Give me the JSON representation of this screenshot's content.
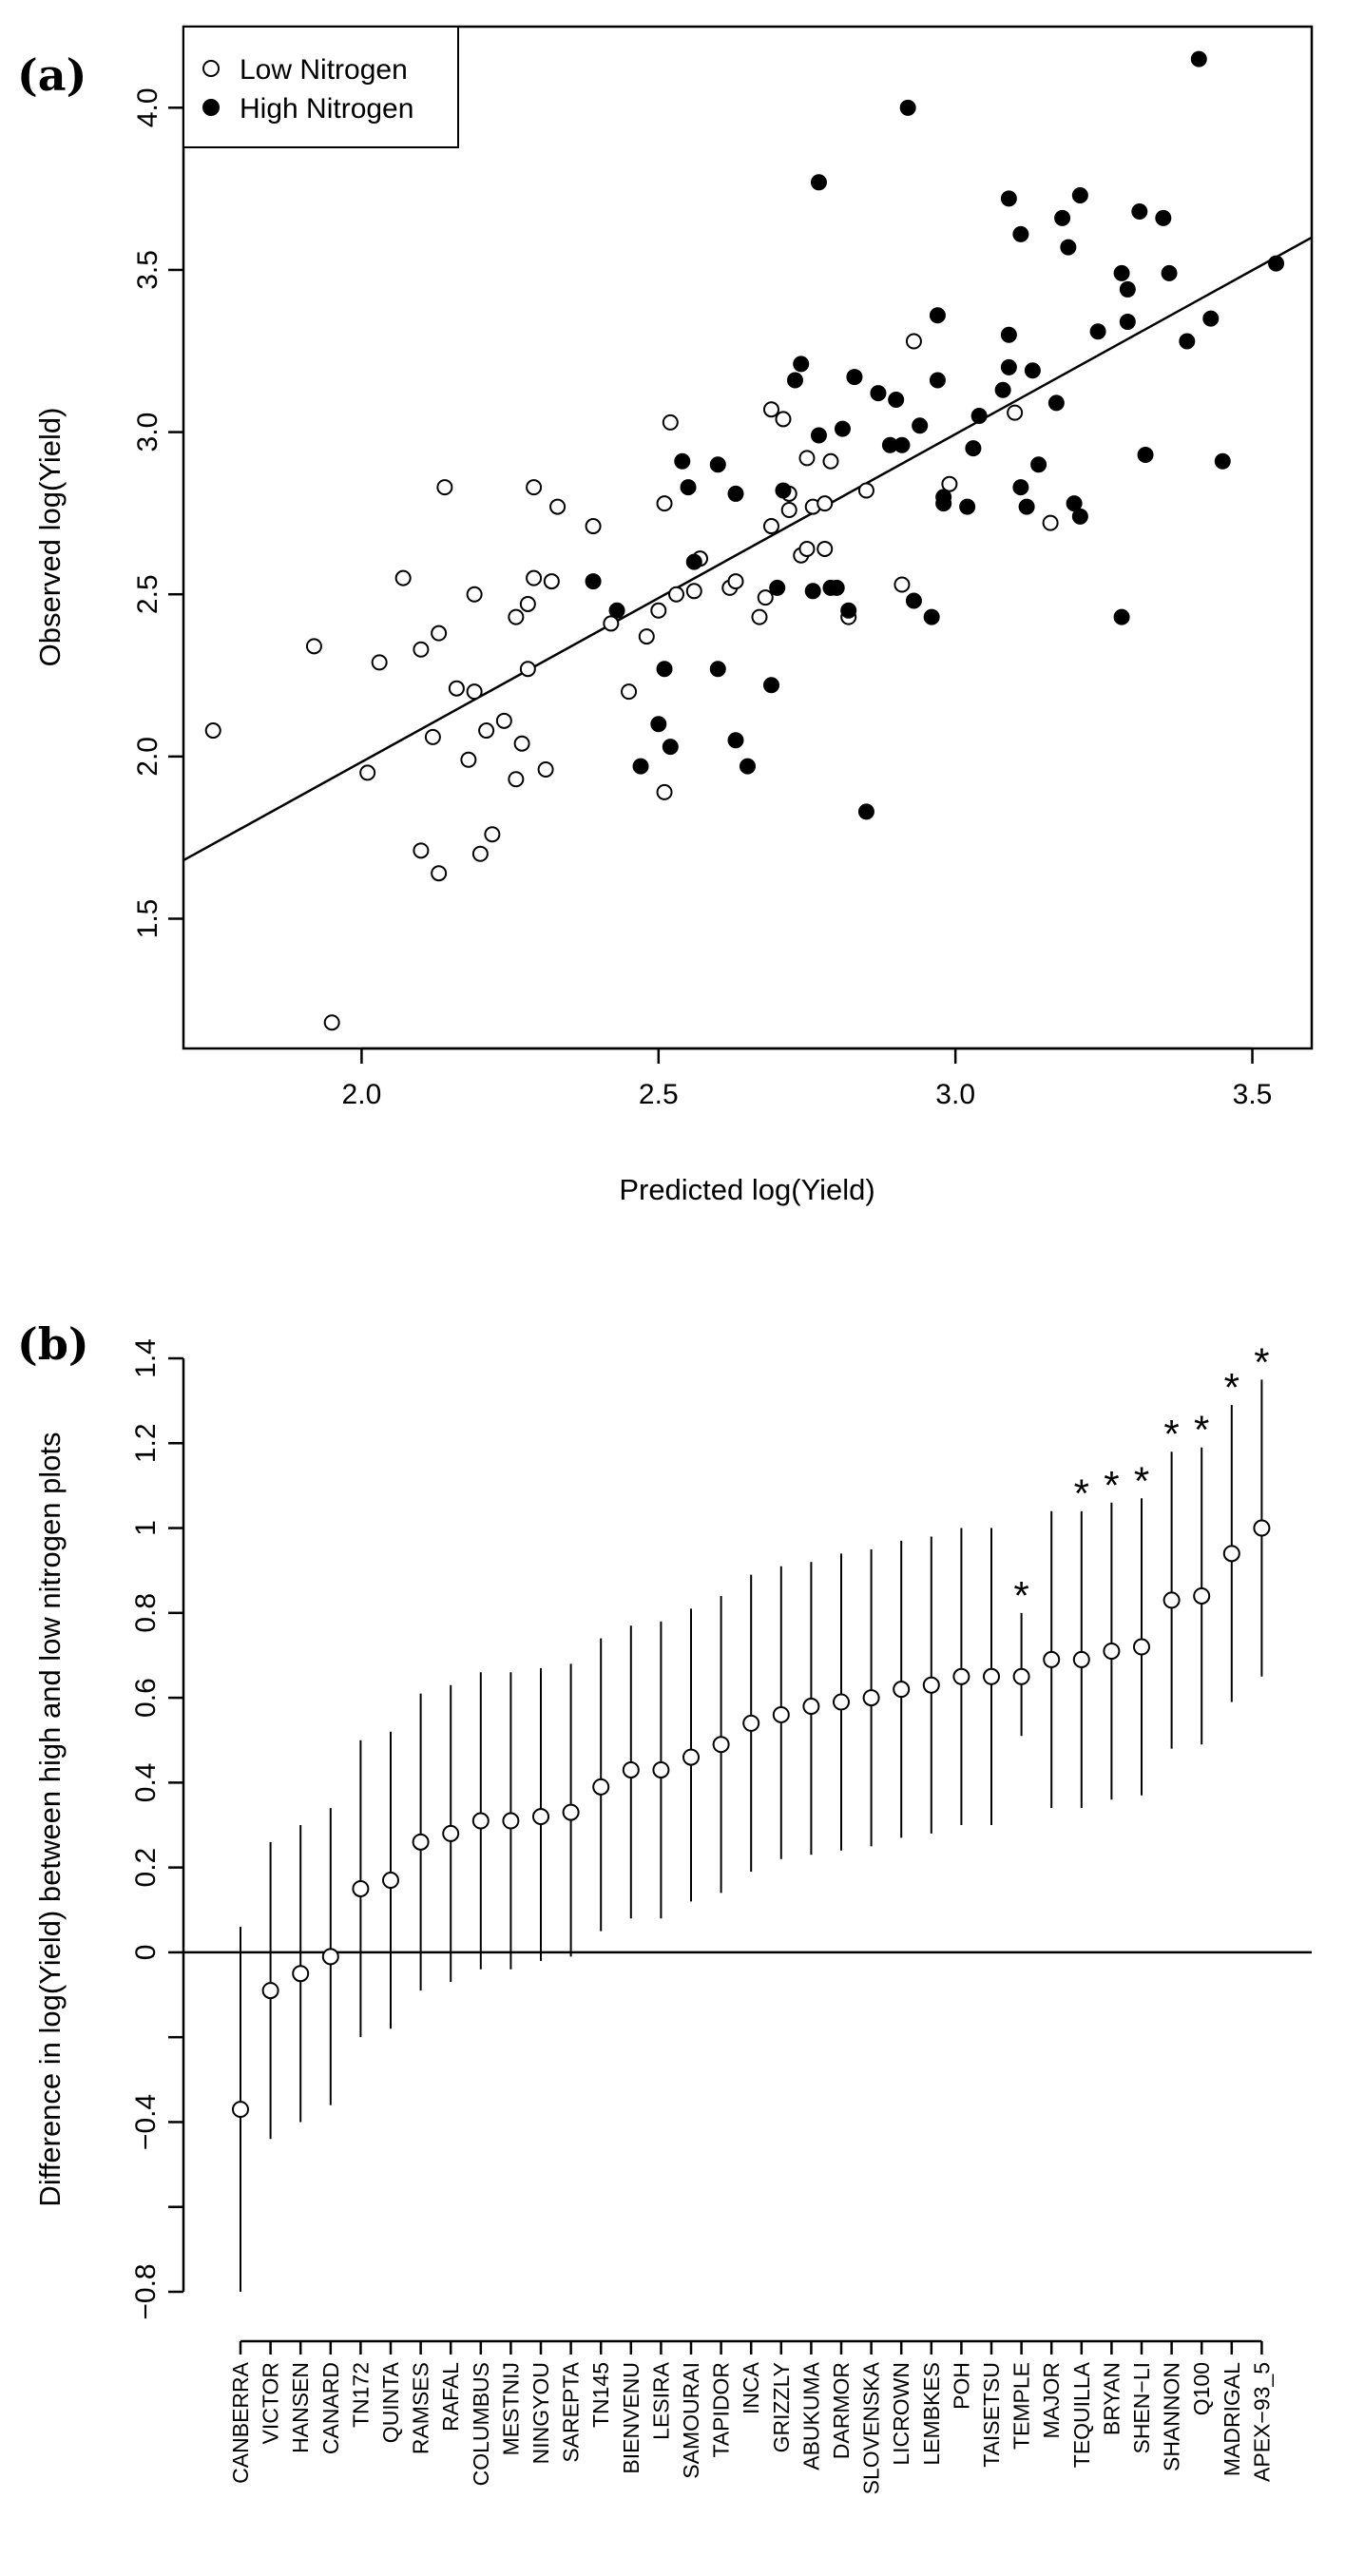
{
  "colors": {
    "ink": "#000000",
    "background": "#ffffff"
  },
  "panel_labels": {
    "a": "(a)",
    "b": "(b)"
  },
  "chart_data": [
    {
      "type": "scatter",
      "title": "",
      "xlabel": "Predicted log(Yield)",
      "ylabel": "Observed log(Yield)",
      "xlim": [
        1.7,
        3.6
      ],
      "ylim": [
        1.1,
        4.25
      ],
      "xticks": [
        2.0,
        2.5,
        3.0,
        3.5
      ],
      "xtick_labels": [
        "2.0",
        "2.5",
        "3.0",
        "3.5"
      ],
      "yticks": [
        1.5,
        2.0,
        2.5,
        3.0,
        3.5,
        4.0
      ],
      "ytick_labels": [
        "1.5",
        "2.0",
        "2.5",
        "3.0",
        "3.5",
        "4.0"
      ],
      "legend": {
        "position": "top-left",
        "entries": [
          {
            "label": "Low Nitrogen",
            "marker": "open-circle"
          },
          {
            "label": "High Nitrogen",
            "marker": "filled-circle"
          }
        ]
      },
      "fit_line": {
        "x": [
          1.7,
          3.6
        ],
        "y": [
          1.68,
          3.6
        ]
      },
      "series": [
        {
          "name": "Low Nitrogen",
          "marker": "open-circle",
          "points": [
            [
              1.75,
              2.08
            ],
            [
              1.92,
              2.34
            ],
            [
              1.95,
              1.18
            ],
            [
              2.01,
              1.95
            ],
            [
              2.03,
              2.29
            ],
            [
              2.07,
              2.55
            ],
            [
              2.1,
              2.33
            ],
            [
              2.1,
              1.71
            ],
            [
              2.12,
              2.06
            ],
            [
              2.13,
              2.38
            ],
            [
              2.13,
              1.64
            ],
            [
              2.14,
              2.83
            ],
            [
              2.16,
              2.21
            ],
            [
              2.18,
              1.99
            ],
            [
              2.19,
              2.5
            ],
            [
              2.19,
              2.2
            ],
            [
              2.2,
              1.7
            ],
            [
              2.21,
              2.08
            ],
            [
              2.22,
              1.76
            ],
            [
              2.24,
              2.11
            ],
            [
              2.26,
              1.93
            ],
            [
              2.26,
              2.43
            ],
            [
              2.27,
              2.04
            ],
            [
              2.28,
              2.47
            ],
            [
              2.28,
              2.27
            ],
            [
              2.29,
              2.55
            ],
            [
              2.29,
              2.83
            ],
            [
              2.31,
              1.96
            ],
            [
              2.32,
              2.54
            ],
            [
              2.33,
              2.77
            ],
            [
              2.39,
              2.71
            ],
            [
              2.42,
              2.41
            ],
            [
              2.45,
              2.2
            ],
            [
              2.48,
              2.37
            ],
            [
              2.5,
              2.45
            ],
            [
              2.51,
              2.78
            ],
            [
              2.51,
              1.89
            ],
            [
              2.52,
              3.03
            ],
            [
              2.53,
              2.5
            ],
            [
              2.56,
              2.51
            ],
            [
              2.57,
              2.61
            ],
            [
              2.62,
              2.52
            ],
            [
              2.63,
              2.54
            ],
            [
              2.67,
              2.43
            ],
            [
              2.68,
              2.49
            ],
            [
              2.69,
              3.07
            ],
            [
              2.69,
              2.71
            ],
            [
              2.71,
              3.04
            ],
            [
              2.72,
              2.81
            ],
            [
              2.72,
              2.76
            ],
            [
              2.74,
              2.62
            ],
            [
              2.75,
              2.92
            ],
            [
              2.75,
              2.64
            ],
            [
              2.76,
              2.77
            ],
            [
              2.78,
              2.64
            ],
            [
              2.78,
              2.78
            ],
            [
              2.79,
              2.91
            ],
            [
              2.82,
              2.43
            ],
            [
              2.85,
              2.82
            ],
            [
              2.91,
              2.53
            ],
            [
              2.93,
              3.28
            ],
            [
              2.99,
              2.84
            ],
            [
              3.1,
              3.06
            ],
            [
              3.16,
              2.72
            ]
          ]
        },
        {
          "name": "High Nitrogen",
          "marker": "filled-circle",
          "points": [
            [
              2.39,
              2.54
            ],
            [
              2.43,
              2.45
            ],
            [
              2.47,
              1.97
            ],
            [
              2.5,
              2.1
            ],
            [
              2.51,
              2.27
            ],
            [
              2.52,
              2.03
            ],
            [
              2.54,
              2.91
            ],
            [
              2.55,
              2.83
            ],
            [
              2.56,
              2.6
            ],
            [
              2.6,
              2.9
            ],
            [
              2.6,
              2.27
            ],
            [
              2.63,
              2.81
            ],
            [
              2.63,
              2.05
            ],
            [
              2.65,
              1.97
            ],
            [
              2.69,
              2.22
            ],
            [
              2.7,
              2.52
            ],
            [
              2.71,
              2.82
            ],
            [
              2.73,
              3.16
            ],
            [
              2.74,
              3.21
            ],
            [
              2.76,
              2.51
            ],
            [
              2.77,
              2.99
            ],
            [
              2.77,
              3.77
            ],
            [
              2.79,
              2.52
            ],
            [
              2.8,
              2.52
            ],
            [
              2.81,
              3.01
            ],
            [
              2.82,
              2.45
            ],
            [
              2.83,
              3.17
            ],
            [
              2.85,
              1.83
            ],
            [
              2.87,
              3.12
            ],
            [
              2.89,
              2.96
            ],
            [
              2.9,
              3.1
            ],
            [
              2.91,
              2.96
            ],
            [
              2.92,
              4.0
            ],
            [
              2.93,
              2.48
            ],
            [
              2.94,
              3.02
            ],
            [
              2.96,
              2.43
            ],
            [
              2.97,
              3.36
            ],
            [
              2.97,
              3.16
            ],
            [
              2.98,
              2.78
            ],
            [
              2.98,
              2.8
            ],
            [
              3.02,
              2.77
            ],
            [
              3.03,
              2.95
            ],
            [
              3.04,
              3.05
            ],
            [
              3.08,
              3.13
            ],
            [
              3.09,
              3.3
            ],
            [
              3.09,
              3.2
            ],
            [
              3.09,
              3.72
            ],
            [
              3.11,
              3.61
            ],
            [
              3.11,
              2.83
            ],
            [
              3.12,
              2.77
            ],
            [
              3.13,
              3.19
            ],
            [
              3.14,
              2.9
            ],
            [
              3.17,
              3.09
            ],
            [
              3.18,
              3.66
            ],
            [
              3.19,
              3.57
            ],
            [
              3.2,
              2.78
            ],
            [
              3.21,
              3.73
            ],
            [
              3.21,
              2.74
            ],
            [
              3.24,
              3.31
            ],
            [
              3.28,
              3.49
            ],
            [
              3.28,
              2.43
            ],
            [
              3.29,
              3.44
            ],
            [
              3.29,
              3.34
            ],
            [
              3.31,
              3.68
            ],
            [
              3.32,
              2.93
            ],
            [
              3.35,
              3.66
            ],
            [
              3.36,
              3.49
            ],
            [
              3.39,
              3.28
            ],
            [
              3.41,
              4.15
            ],
            [
              3.43,
              3.35
            ],
            [
              3.45,
              2.91
            ],
            [
              3.54,
              3.52
            ]
          ]
        }
      ]
    },
    {
      "type": "errorbar",
      "title": "",
      "xlabel": "",
      "ylabel": "Difference in log(Yield) between high and low nitrogen plots",
      "ylim": [
        -0.8,
        1.4
      ],
      "yticks": [
        -0.8,
        -0.6,
        -0.4,
        -0.2,
        0,
        0.2,
        0.4,
        0.6,
        0.8,
        1.0,
        1.2,
        1.4
      ],
      "ytick_labels": [
        "−0.8",
        "",
        "−0.4",
        "",
        "0",
        "0.2",
        "0.4",
        "0.6",
        "0.8",
        "1",
        "1.2",
        "1.4"
      ],
      "reference_line": 0,
      "significance_marker": "*",
      "categories": [
        "CANBERRA",
        "VICTOR",
        "HANSEN",
        "CANARD",
        "TN172",
        "QUINTA",
        "RAMSES",
        "RAFAL",
        "COLUMBUS",
        "MESTNIJ",
        "NINGYOU",
        "SAREPTA",
        "TN145",
        "BIENVENU",
        "LESIRA",
        "SAMOURAI",
        "TAPIDOR",
        "INCA",
        "GRIZZLY",
        "ABUKUMA",
        "DARMOR",
        "SLOVENSKA",
        "LICROWN",
        "LEMBKES",
        "POH",
        "TAISETSU",
        "TEMPLE",
        "MAJOR",
        "TEQUILLA",
        "BRYAN",
        "SHEN−LI",
        "SHANNON",
        "Q100",
        "MADRIGAL",
        "APEX−93_5"
      ],
      "values": [
        -0.37,
        -0.09,
        -0.05,
        -0.01,
        0.15,
        0.17,
        0.26,
        0.28,
        0.31,
        0.31,
        0.32,
        0.33,
        0.39,
        0.43,
        0.43,
        0.46,
        0.49,
        0.54,
        0.56,
        0.58,
        0.59,
        0.6,
        0.62,
        0.63,
        0.65,
        0.65,
        0.65,
        0.69,
        0.69,
        0.71,
        0.72,
        0.83,
        0.84,
        0.94,
        1.0
      ],
      "lower": [
        -0.8,
        -0.44,
        -0.4,
        -0.36,
        -0.2,
        -0.18,
        -0.09,
        -0.07,
        -0.04,
        -0.04,
        -0.02,
        -0.01,
        0.05,
        0.08,
        0.08,
        0.12,
        0.14,
        0.19,
        0.22,
        0.23,
        0.24,
        0.25,
        0.27,
        0.28,
        0.3,
        0.3,
        0.51,
        0.34,
        0.34,
        0.36,
        0.37,
        0.48,
        0.49,
        0.59,
        0.65
      ],
      "upper": [
        0.06,
        0.26,
        0.3,
        0.34,
        0.5,
        0.52,
        0.61,
        0.63,
        0.66,
        0.66,
        0.67,
        0.68,
        0.74,
        0.77,
        0.78,
        0.81,
        0.84,
        0.89,
        0.91,
        0.92,
        0.94,
        0.95,
        0.97,
        0.98,
        1.0,
        1.0,
        0.8,
        1.04,
        1.04,
        1.06,
        1.07,
        1.18,
        1.19,
        1.29,
        1.35
      ],
      "significant": [
        false,
        false,
        false,
        false,
        false,
        false,
        false,
        false,
        false,
        false,
        false,
        false,
        false,
        false,
        false,
        false,
        false,
        false,
        false,
        false,
        false,
        false,
        false,
        false,
        false,
        false,
        true,
        false,
        true,
        true,
        true,
        true,
        true,
        true,
        true
      ]
    }
  ]
}
